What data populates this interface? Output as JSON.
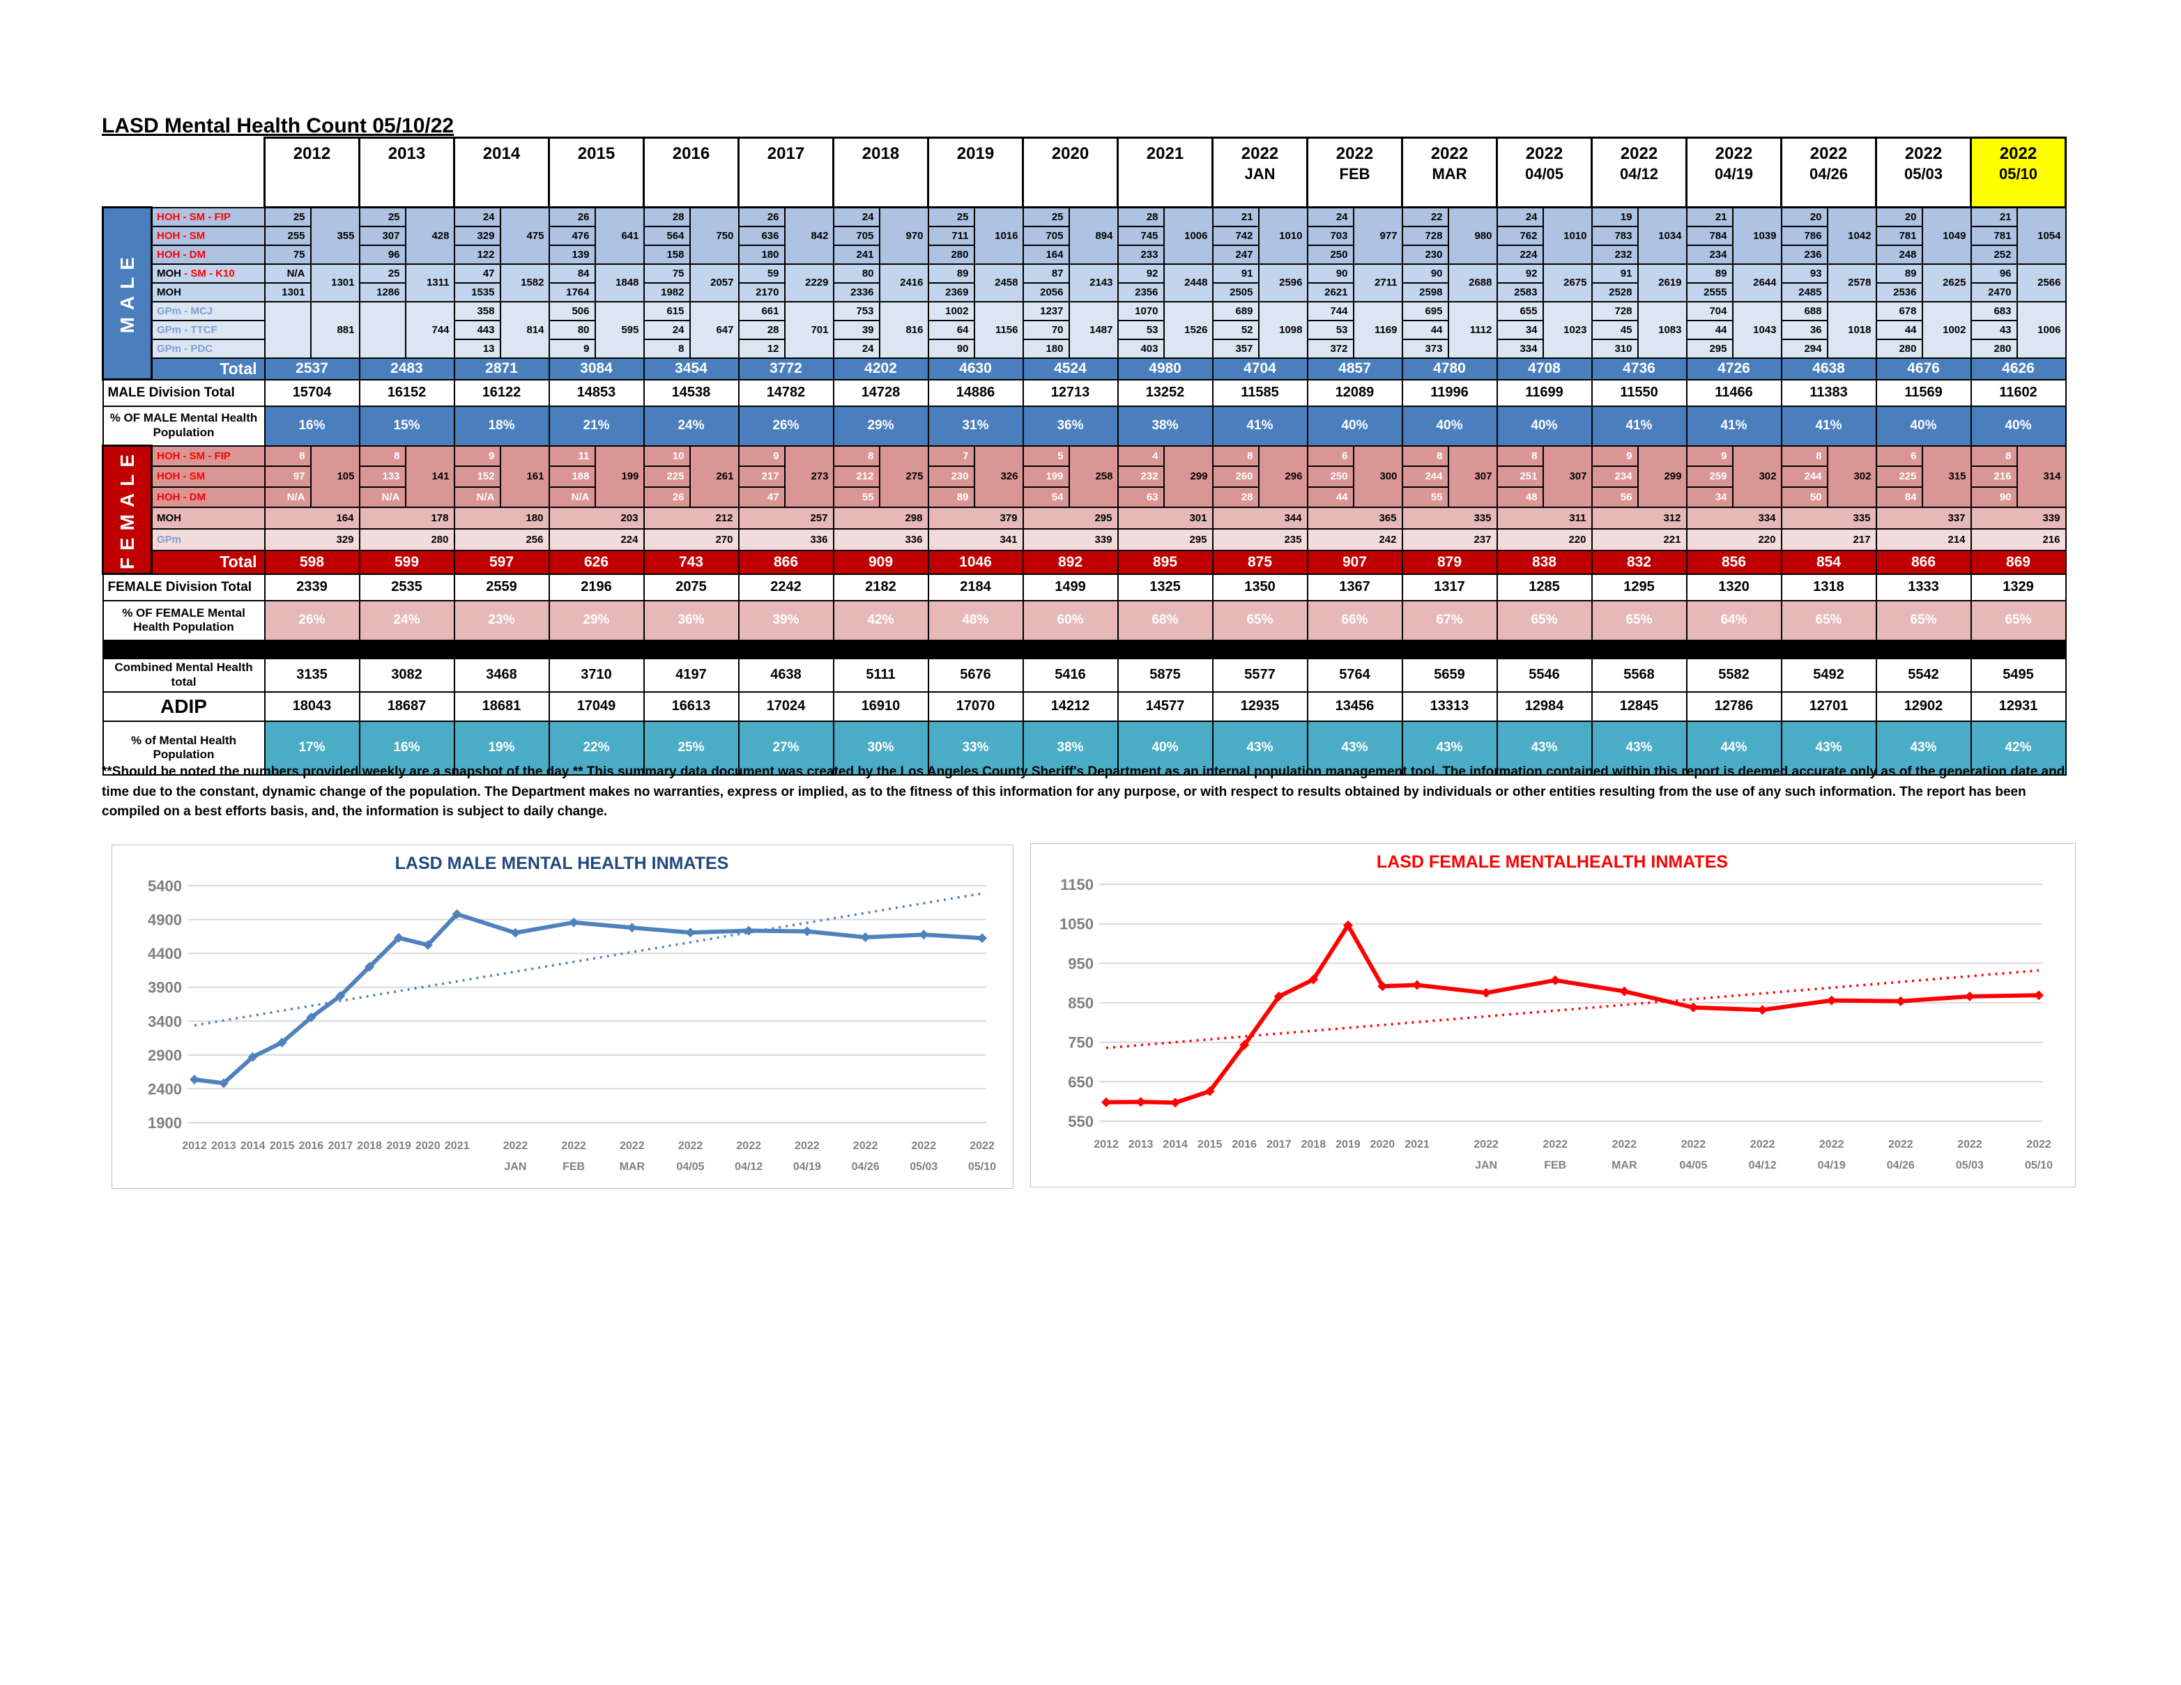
{
  "page": {
    "title": "LASD Mental Health Count 05/10/22",
    "disclaimer": "**Should be noted the numbers provided weekly are a snapshot of the day ** This summary data document was created by the Los Angeles County Sheriff's Department as an internal population management tool.  The information contained within this report is deemed accurate only as of the generation date and time due to the constant, dynamic change of the population.  The Department makes no warranties, express or implied, as to the fitness of this information for any purpose, or with respect to results obtained by individuals or other entities resulting from the use of any such information.  The report has been compiled on a best efforts basis, and, the information is subject to daily change."
  },
  "colors": {
    "male_accent": "#4A7EBD",
    "female_accent": "#C00000",
    "teal_accent": "#4BACC6",
    "highlight_yellow": "#FFFF00",
    "male_chart_line": "#4F81BD",
    "female_chart_line": "#FF0000"
  },
  "table": {
    "columns": [
      {
        "label": "2012",
        "sub": "",
        "highlight": false
      },
      {
        "label": "2013",
        "sub": "",
        "highlight": false
      },
      {
        "label": "2014",
        "sub": "",
        "highlight": false
      },
      {
        "label": "2015",
        "sub": "",
        "highlight": false
      },
      {
        "label": "2016",
        "sub": "",
        "highlight": false
      },
      {
        "label": "2017",
        "sub": "",
        "highlight": false
      },
      {
        "label": "2018",
        "sub": "",
        "highlight": false
      },
      {
        "label": "2019",
        "sub": "",
        "highlight": false
      },
      {
        "label": "2020",
        "sub": "",
        "highlight": false
      },
      {
        "label": "2021",
        "sub": "",
        "highlight": false
      },
      {
        "label": "2022",
        "sub": "JAN",
        "highlight": false
      },
      {
        "label": "2022",
        "sub": "FEB",
        "highlight": false
      },
      {
        "label": "2022",
        "sub": "MAR",
        "highlight": false
      },
      {
        "label": "2022",
        "sub": "04/05",
        "highlight": false
      },
      {
        "label": "2022",
        "sub": "04/12",
        "highlight": false
      },
      {
        "label": "2022",
        "sub": "04/19",
        "highlight": false
      },
      {
        "label": "2022",
        "sub": "04/26",
        "highlight": false
      },
      {
        "label": "2022",
        "sub": "05/03",
        "highlight": false
      },
      {
        "label": "2022",
        "sub": "05/10",
        "highlight": true
      }
    ],
    "male_band": "MALE",
    "female_band": "FEMALE",
    "male_rows": {
      "hoh_fip": {
        "label": "HOH - SM - FIP",
        "values": [
          "25",
          "25",
          "24",
          "26",
          "28",
          "26",
          "24",
          "25",
          "25",
          "28",
          "21",
          "24",
          "22",
          "24",
          "19",
          "21",
          "20",
          "20",
          "21"
        ]
      },
      "hoh_sm": {
        "label": "HOH - SM",
        "values": [
          "255",
          "307",
          "329",
          "476",
          "564",
          "636",
          "705",
          "711",
          "705",
          "745",
          "742",
          "703",
          "728",
          "762",
          "783",
          "784",
          "786",
          "781",
          "781"
        ]
      },
      "hoh_dm": {
        "label": "HOH - DM",
        "values": [
          "75",
          "96",
          "122",
          "139",
          "158",
          "180",
          "241",
          "280",
          "164",
          "233",
          "247",
          "250",
          "230",
          "224",
          "232",
          "234",
          "236",
          "248",
          "252"
        ]
      },
      "hoh_subtotal": {
        "values": [
          "355",
          "428",
          "475",
          "641",
          "750",
          "842",
          "970",
          "1016",
          "894",
          "1006",
          "1010",
          "977",
          "980",
          "1010",
          "1034",
          "1039",
          "1042",
          "1049",
          "1054"
        ]
      },
      "moh_k10": {
        "label_prefix": "MOH ",
        "label_suffix": "- SM - K10",
        "values": [
          "N/A",
          "25",
          "47",
          "84",
          "75",
          "59",
          "80",
          "89",
          "87",
          "92",
          "91",
          "90",
          "90",
          "92",
          "91",
          "89",
          "93",
          "89",
          "96"
        ]
      },
      "moh": {
        "label": "MOH",
        "values": [
          "1301",
          "1286",
          "1535",
          "1764",
          "1982",
          "2170",
          "2336",
          "2369",
          "2056",
          "2356",
          "2505",
          "2621",
          "2598",
          "2583",
          "2528",
          "2555",
          "2485",
          "2536",
          "2470"
        ]
      },
      "moh_subtotal": {
        "values": [
          "1301",
          "1311",
          "1582",
          "1848",
          "2057",
          "2229",
          "2416",
          "2458",
          "2143",
          "2448",
          "2596",
          "2711",
          "2688",
          "2675",
          "2619",
          "2644",
          "2578",
          "2625",
          "2566"
        ]
      },
      "gpm_mcj": {
        "label": "GPm - MCJ",
        "values": [
          "",
          "",
          "358",
          "506",
          "615",
          "661",
          "753",
          "1002",
          "1237",
          "1070",
          "689",
          "744",
          "695",
          "655",
          "728",
          "704",
          "688",
          "678",
          "683"
        ]
      },
      "gpm_ttcf": {
        "label": "GPm - TTCF",
        "values": [
          "",
          "",
          "443",
          "80",
          "24",
          "28",
          "39",
          "64",
          "70",
          "53",
          "52",
          "53",
          "44",
          "34",
          "45",
          "44",
          "36",
          "44",
          "43"
        ]
      },
      "gpm_pdc": {
        "label": "GPm - PDC",
        "values": [
          "",
          "",
          "13",
          "9",
          "8",
          "12",
          "24",
          "90",
          "180",
          "403",
          "357",
          "372",
          "373",
          "334",
          "310",
          "295",
          "294",
          "280",
          "280"
        ]
      },
      "gpm_subtotal": {
        "values": [
          "881",
          "744",
          "814",
          "595",
          "647",
          "701",
          "816",
          "1156",
          "1487",
          "1526",
          "1098",
          "1169",
          "1112",
          "1023",
          "1083",
          "1043",
          "1018",
          "1002",
          "1006"
        ]
      },
      "total": {
        "label": "Total",
        "values": [
          "2537",
          "2483",
          "2871",
          "3084",
          "3454",
          "3772",
          "4202",
          "4630",
          "4524",
          "4980",
          "4704",
          "4857",
          "4780",
          "4708",
          "4736",
          "4726",
          "4638",
          "4676",
          "4626"
        ]
      }
    },
    "female_rows": {
      "hoh_fip": {
        "label": "HOH - SM - FIP",
        "values": [
          "8",
          "8",
          "9",
          "11",
          "10",
          "9",
          "8",
          "7",
          "5",
          "4",
          "8",
          "6",
          "8",
          "8",
          "9",
          "9",
          "8",
          "6",
          "8"
        ]
      },
      "hoh_sm": {
        "label": "HOH - SM",
        "values": [
          "97",
          "133",
          "152",
          "188",
          "225",
          "217",
          "212",
          "230",
          "199",
          "232",
          "260",
          "250",
          "244",
          "251",
          "234",
          "259",
          "244",
          "225",
          "216"
        ]
      },
      "hoh_dm": {
        "label": "HOH - DM",
        "values": [
          "N/A",
          "N/A",
          "N/A",
          "N/A",
          "26",
          "47",
          "55",
          "89",
          "54",
          "63",
          "28",
          "44",
          "55",
          "48",
          "56",
          "34",
          "50",
          "84",
          "90"
        ]
      },
      "hoh_subtotal": {
        "values": [
          "105",
          "141",
          "161",
          "199",
          "261",
          "273",
          "275",
          "326",
          "258",
          "299",
          "296",
          "300",
          "307",
          "307",
          "299",
          "302",
          "302",
          "315",
          "314"
        ]
      },
      "moh": {
        "label": "MOH",
        "values": [
          "164",
          "178",
          "180",
          "203",
          "212",
          "257",
          "298",
          "379",
          "295",
          "301",
          "344",
          "365",
          "335",
          "311",
          "312",
          "334",
          "335",
          "337",
          "339"
        ]
      },
      "gpm": {
        "label": "GPm",
        "values": [
          "329",
          "280",
          "256",
          "224",
          "270",
          "336",
          "336",
          "341",
          "339",
          "295",
          "235",
          "242",
          "237",
          "220",
          "221",
          "220",
          "217",
          "214",
          "216"
        ]
      },
      "total": {
        "label": "Total",
        "values": [
          "598",
          "599",
          "597",
          "626",
          "743",
          "866",
          "909",
          "1046",
          "892",
          "895",
          "875",
          "907",
          "879",
          "838",
          "832",
          "856",
          "854",
          "866",
          "869"
        ]
      }
    },
    "summary": {
      "male_division_total": {
        "label": "MALE Division Total",
        "values": [
          "15704",
          "16152",
          "16122",
          "14853",
          "14538",
          "14782",
          "14728",
          "14886",
          "12713",
          "13252",
          "11585",
          "12089",
          "11996",
          "11699",
          "11550",
          "11466",
          "11383",
          "11569",
          "11602"
        ]
      },
      "pct_male": {
        "label": "% OF MALE Mental Health Population",
        "values": [
          "16%",
          "15%",
          "18%",
          "21%",
          "24%",
          "26%",
          "29%",
          "31%",
          "36%",
          "38%",
          "41%",
          "40%",
          "40%",
          "40%",
          "41%",
          "41%",
          "41%",
          "40%",
          "40%"
        ]
      },
      "female_division_total": {
        "label": "FEMALE Division Total",
        "values": [
          "2339",
          "2535",
          "2559",
          "2196",
          "2075",
          "2242",
          "2182",
          "2184",
          "1499",
          "1325",
          "1350",
          "1367",
          "1317",
          "1285",
          "1295",
          "1320",
          "1318",
          "1333",
          "1329"
        ]
      },
      "pct_female": {
        "label": "% OF FEMALE Mental Health Population",
        "values": [
          "26%",
          "24%",
          "23%",
          "29%",
          "36%",
          "39%",
          "42%",
          "48%",
          "60%",
          "68%",
          "65%",
          "66%",
          "67%",
          "65%",
          "65%",
          "64%",
          "65%",
          "65%",
          "65%"
        ]
      },
      "combined": {
        "label": "Combined Mental Health total",
        "values": [
          "3135",
          "3082",
          "3468",
          "3710",
          "4197",
          "4638",
          "5111",
          "5676",
          "5416",
          "5875",
          "5577",
          "5764",
          "5659",
          "5546",
          "5568",
          "5582",
          "5492",
          "5542",
          "5495"
        ]
      },
      "adip": {
        "label": "ADIP",
        "values": [
          "18043",
          "18687",
          "18681",
          "17049",
          "16613",
          "17024",
          "16910",
          "17070",
          "14212",
          "14577",
          "12935",
          "13456",
          "13313",
          "12984",
          "12845",
          "12786",
          "12701",
          "12902",
          "12931"
        ]
      },
      "pct_total": {
        "label": "% of Mental Health Population",
        "values": [
          "17%",
          "16%",
          "19%",
          "22%",
          "25%",
          "27%",
          "30%",
          "33%",
          "38%",
          "40%",
          "43%",
          "43%",
          "43%",
          "43%",
          "43%",
          "44%",
          "43%",
          "43%",
          "42%"
        ]
      }
    }
  },
  "chart_data": [
    {
      "type": "line",
      "name": "male-mental-health-chart",
      "title": "LASD MALE MENTAL HEALTH INMATES",
      "title_color": "#1F497D",
      "line_color": "#4F81BD",
      "categories": [
        "2012",
        "2013",
        "2014",
        "2015",
        "2016",
        "2017",
        "2018",
        "2019",
        "2020",
        "2021",
        "2022 JAN",
        "2022 FEB",
        "2022 MAR",
        "2022 04/05",
        "2022 04/12",
        "2022 04/19",
        "2022 04/26",
        "2022 05/03",
        "2022 05/10"
      ],
      "values": [
        2537,
        2483,
        2871,
        3084,
        3454,
        3772,
        4202,
        4630,
        4524,
        4980,
        4704,
        4857,
        4780,
        4708,
        4736,
        4726,
        4638,
        4676,
        4626
      ],
      "ylim": [
        1900,
        5400
      ],
      "ytick_step": 500,
      "grid": true,
      "legend": "none",
      "trendline": "linear-dotted"
    },
    {
      "type": "line",
      "name": "female-mental-health-chart",
      "title": "LASD FEMALE MENTALHEALTH INMATES",
      "title_color": "#FF0000",
      "line_color": "#FF0000",
      "categories": [
        "2012",
        "2013",
        "2014",
        "2015",
        "2016",
        "2017",
        "2018",
        "2019",
        "2020",
        "2021",
        "2022 JAN",
        "2022 FEB",
        "2022 MAR",
        "2022 04/05",
        "2022 04/12",
        "2022 04/19",
        "2022 04/26",
        "2022 05/03",
        "2022 05/10"
      ],
      "values": [
        598,
        599,
        597,
        626,
        743,
        866,
        909,
        1046,
        892,
        895,
        875,
        907,
        879,
        838,
        832,
        856,
        854,
        866,
        869
      ],
      "ylim": [
        550,
        1150
      ],
      "ytick_step": 100,
      "grid": true,
      "legend": "none",
      "trendline": "linear-dotted"
    }
  ]
}
